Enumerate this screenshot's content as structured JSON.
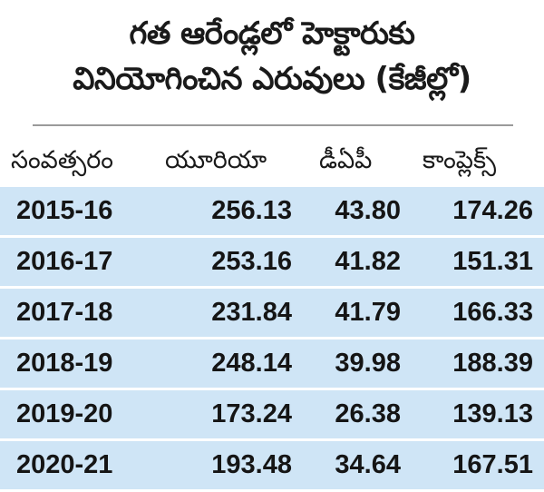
{
  "title": {
    "line1": "గత ఆరేండ్లలో హెక్టారుకు",
    "line2": "వినియోగించిన ఎరువులు (కేజీల్లో)"
  },
  "columns": {
    "year": "సంవత్సరం",
    "urea": "యూరియా",
    "dap": "డీఏపీ",
    "complex": "కాంప్లెక్స్"
  },
  "rows": [
    {
      "year": "2015-16",
      "urea": "256.13",
      "dap": "43.80",
      "complex": "174.26"
    },
    {
      "year": "2016-17",
      "urea": "253.16",
      "dap": "41.82",
      "complex": "151.31"
    },
    {
      "year": "2017-18",
      "urea": "231.84",
      "dap": "41.79",
      "complex": "166.33"
    },
    {
      "year": "2018-19",
      "urea": "248.14",
      "dap": "39.98",
      "complex": "188.39"
    },
    {
      "year": "2019-20",
      "urea": "173.24",
      "dap": "26.38",
      "complex": "139.13"
    },
    {
      "year": "2020-21",
      "urea": "193.48",
      "dap": "34.64",
      "complex": "167.51"
    }
  ],
  "colors": {
    "row_shade": "#cfe5f6",
    "divider": "#9a9a9a"
  }
}
